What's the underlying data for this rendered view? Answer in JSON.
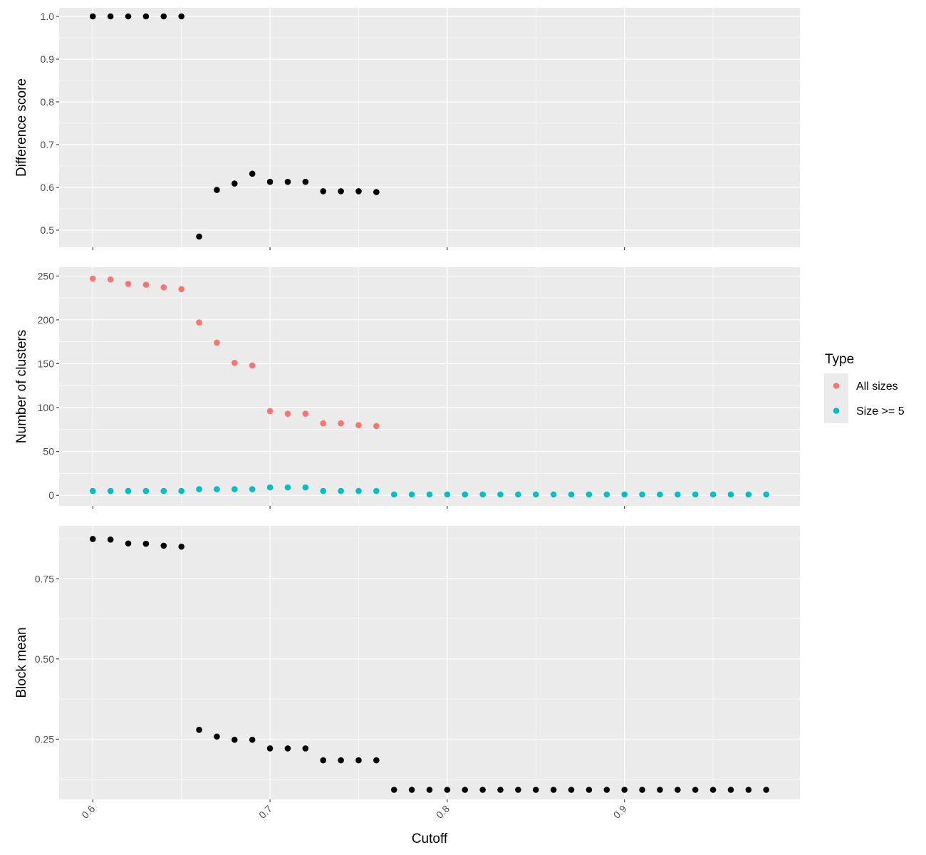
{
  "chart_data": [
    {
      "type": "scatter",
      "panel": "top",
      "title": "",
      "xlabel": "",
      "ylabel": "Difference score",
      "xlim": [
        0.581,
        0.999
      ],
      "ylim": [
        0.46,
        1.02
      ],
      "y_ticks": [
        0.5,
        0.6,
        0.7,
        0.8,
        0.9,
        1.0
      ],
      "y_tick_labels": [
        "0.5",
        "0.6",
        "0.7",
        "0.8",
        "0.9",
        "1.0"
      ],
      "grid": true,
      "color": "#000000",
      "series": [
        {
          "x": [
            0.6,
            0.61,
            0.62,
            0.63,
            0.64,
            0.65,
            0.66,
            0.67,
            0.68,
            0.69,
            0.7,
            0.71,
            0.72,
            0.73,
            0.74,
            0.75,
            0.76
          ],
          "y": [
            1.0,
            1.0,
            1.0,
            1.0,
            1.0,
            1.0,
            0.485,
            0.594,
            0.609,
            0.632,
            0.613,
            0.613,
            0.613,
            0.591,
            0.591,
            0.591,
            0.589
          ]
        }
      ]
    },
    {
      "type": "scatter",
      "panel": "middle",
      "title": "",
      "xlabel": "",
      "ylabel": "Number of clusters",
      "xlim": [
        0.581,
        0.999
      ],
      "ylim": [
        -12,
        260
      ],
      "y_ticks": [
        0,
        50,
        100,
        150,
        200,
        250
      ],
      "y_tick_labels": [
        "0",
        "50",
        "100",
        "150",
        "200",
        "250"
      ],
      "grid": true,
      "legend": {
        "title": "Type",
        "position": "right"
      },
      "series": [
        {
          "name": "All sizes",
          "color": "#F8766D",
          "x": [
            0.6,
            0.61,
            0.62,
            0.63,
            0.64,
            0.65,
            0.66,
            0.67,
            0.68,
            0.69,
            0.7,
            0.71,
            0.72,
            0.73,
            0.74,
            0.75,
            0.76
          ],
          "y": [
            247,
            246,
            241,
            240,
            237,
            235,
            197,
            174,
            151,
            148,
            96,
            93,
            93,
            82,
            82,
            80,
            79
          ]
        },
        {
          "name": "Size >= 5",
          "color": "#00BFC4",
          "x": [
            0.6,
            0.61,
            0.62,
            0.63,
            0.64,
            0.65,
            0.66,
            0.67,
            0.68,
            0.69,
            0.7,
            0.71,
            0.72,
            0.73,
            0.74,
            0.75,
            0.76,
            0.77,
            0.78,
            0.79,
            0.8,
            0.81,
            0.82,
            0.83,
            0.84,
            0.85,
            0.86,
            0.87,
            0.88,
            0.89,
            0.9,
            0.91,
            0.92,
            0.93,
            0.94,
            0.95,
            0.96,
            0.97,
            0.98
          ],
          "y": [
            5,
            5,
            5,
            5,
            5,
            5,
            7,
            7,
            7,
            7,
            9,
            9,
            9,
            5,
            5,
            5,
            5,
            1,
            1,
            1,
            1,
            1,
            1,
            1,
            1,
            1,
            1,
            1,
            1,
            1,
            1,
            1,
            1,
            1,
            1,
            1,
            1,
            1,
            1
          ]
        }
      ]
    },
    {
      "type": "scatter",
      "panel": "bottom",
      "title": "",
      "xlabel": "Cutoff",
      "ylabel": "Block mean",
      "xlim": [
        0.581,
        0.999
      ],
      "ylim": [
        0.062,
        0.915
      ],
      "y_ticks": [
        0.25,
        0.5,
        0.75
      ],
      "y_tick_labels": [
        "0.25",
        "0.50",
        "0.75"
      ],
      "x_ticks": [
        0.6,
        0.7,
        0.8,
        0.9
      ],
      "x_tick_labels": [
        "0.6",
        "0.7",
        "0.8",
        "0.9"
      ],
      "grid": true,
      "color": "#000000",
      "series": [
        {
          "x": [
            0.6,
            0.61,
            0.62,
            0.63,
            0.64,
            0.65,
            0.66,
            0.67,
            0.68,
            0.69,
            0.7,
            0.71,
            0.72,
            0.73,
            0.74,
            0.75,
            0.76,
            0.77,
            0.78,
            0.79,
            0.8,
            0.81,
            0.82,
            0.83,
            0.84,
            0.85,
            0.86,
            0.87,
            0.88,
            0.89,
            0.9,
            0.91,
            0.92,
            0.93,
            0.94,
            0.95,
            0.96,
            0.97,
            0.98
          ],
          "y": [
            0.874,
            0.872,
            0.86,
            0.859,
            0.853,
            0.85,
            0.279,
            0.258,
            0.248,
            0.248,
            0.221,
            0.221,
            0.221,
            0.184,
            0.184,
            0.184,
            0.184,
            0.092,
            0.092,
            0.092,
            0.092,
            0.092,
            0.092,
            0.092,
            0.092,
            0.092,
            0.092,
            0.092,
            0.092,
            0.092,
            0.092,
            0.092,
            0.092,
            0.092,
            0.092,
            0.092,
            0.092,
            0.092,
            0.092
          ]
        }
      ]
    }
  ]
}
